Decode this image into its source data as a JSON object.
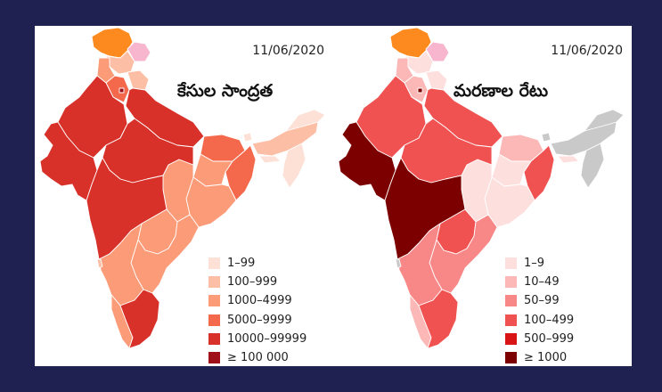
{
  "panels": [
    {
      "date": "11/06/2020",
      "title": "కేసుల సాంద్రత",
      "legend": [
        {
          "label": "1–99",
          "color": "#fde0d6"
        },
        {
          "label": "100–999",
          "color": "#fcbfa5"
        },
        {
          "label": "1000–4999",
          "color": "#fb9b78"
        },
        {
          "label": "5000–9999",
          "color": "#f4684c"
        },
        {
          "label": "10000–99999",
          "color": "#d8312a"
        },
        {
          "label": "≥ 100 000",
          "color": "#a01018"
        }
      ]
    },
    {
      "date": "11/06/2020",
      "title": "మరణాల రేటు",
      "legend": [
        {
          "label": "1–9",
          "color": "#fde0de"
        },
        {
          "label": "10–49",
          "color": "#fbb8b6"
        },
        {
          "label": "50–99",
          "color": "#f88888"
        },
        {
          "label": "100–499",
          "color": "#f05252"
        },
        {
          "label": "500–999",
          "color": "#d81414"
        },
        {
          "label": "≥ 1000",
          "color": "#7d0000"
        }
      ]
    }
  ],
  "colors": {
    "background": "#1f2150",
    "card": "#ffffff",
    "kashmir_region": "#fd8a1e",
    "aksai_chin": "#f8b6ce",
    "no_data": "#c9c9c9",
    "state_border": "#ffffff"
  }
}
